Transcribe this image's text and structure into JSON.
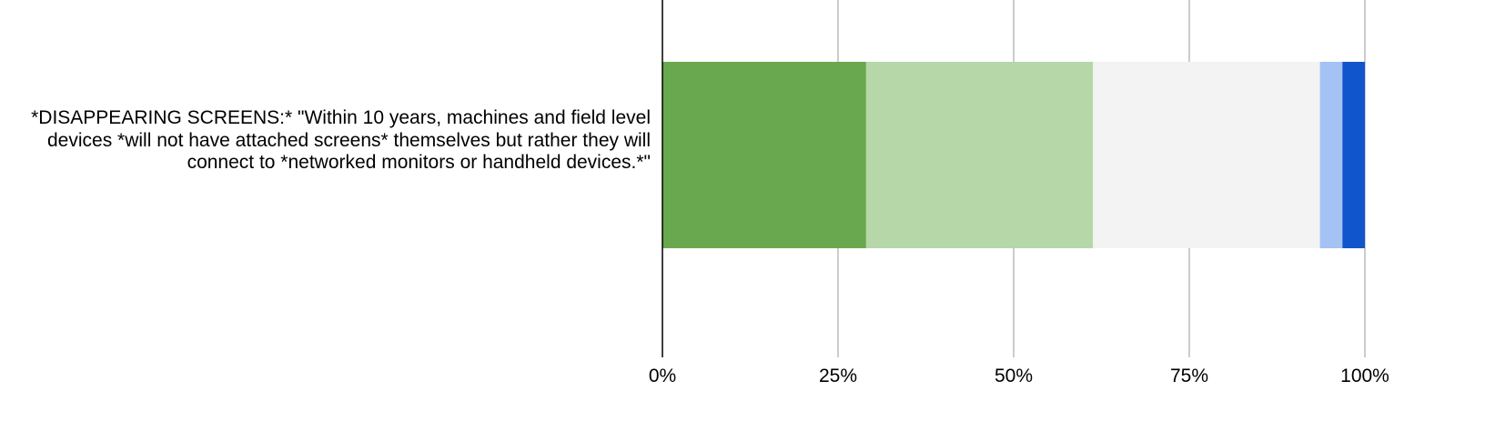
{
  "chart_data": {
    "type": "bar",
    "orientation": "horizontal",
    "stacked": "percent",
    "categories": [
      "*DISAPPEARING SCREENS:* \"Within 10 years, machines and field level devices *will not have attached screens* themselves but rather they will connect to *networked monitors or handheld devices.*\""
    ],
    "series": [
      {
        "values": [
          29.0
        ],
        "color": "#6aa84f"
      },
      {
        "values": [
          32.3
        ],
        "color": "#b6d7a8"
      },
      {
        "values": [
          32.3
        ],
        "color": "#f3f3f3"
      },
      {
        "values": [
          3.2
        ],
        "color": "#a4c2f4"
      },
      {
        "values": [
          3.2
        ],
        "color": "#1155cc"
      }
    ],
    "xlim": [
      0,
      100
    ],
    "xticks": [
      "0%",
      "25%",
      "50%",
      "75%",
      "100%"
    ],
    "grid": true,
    "legend": "none"
  }
}
